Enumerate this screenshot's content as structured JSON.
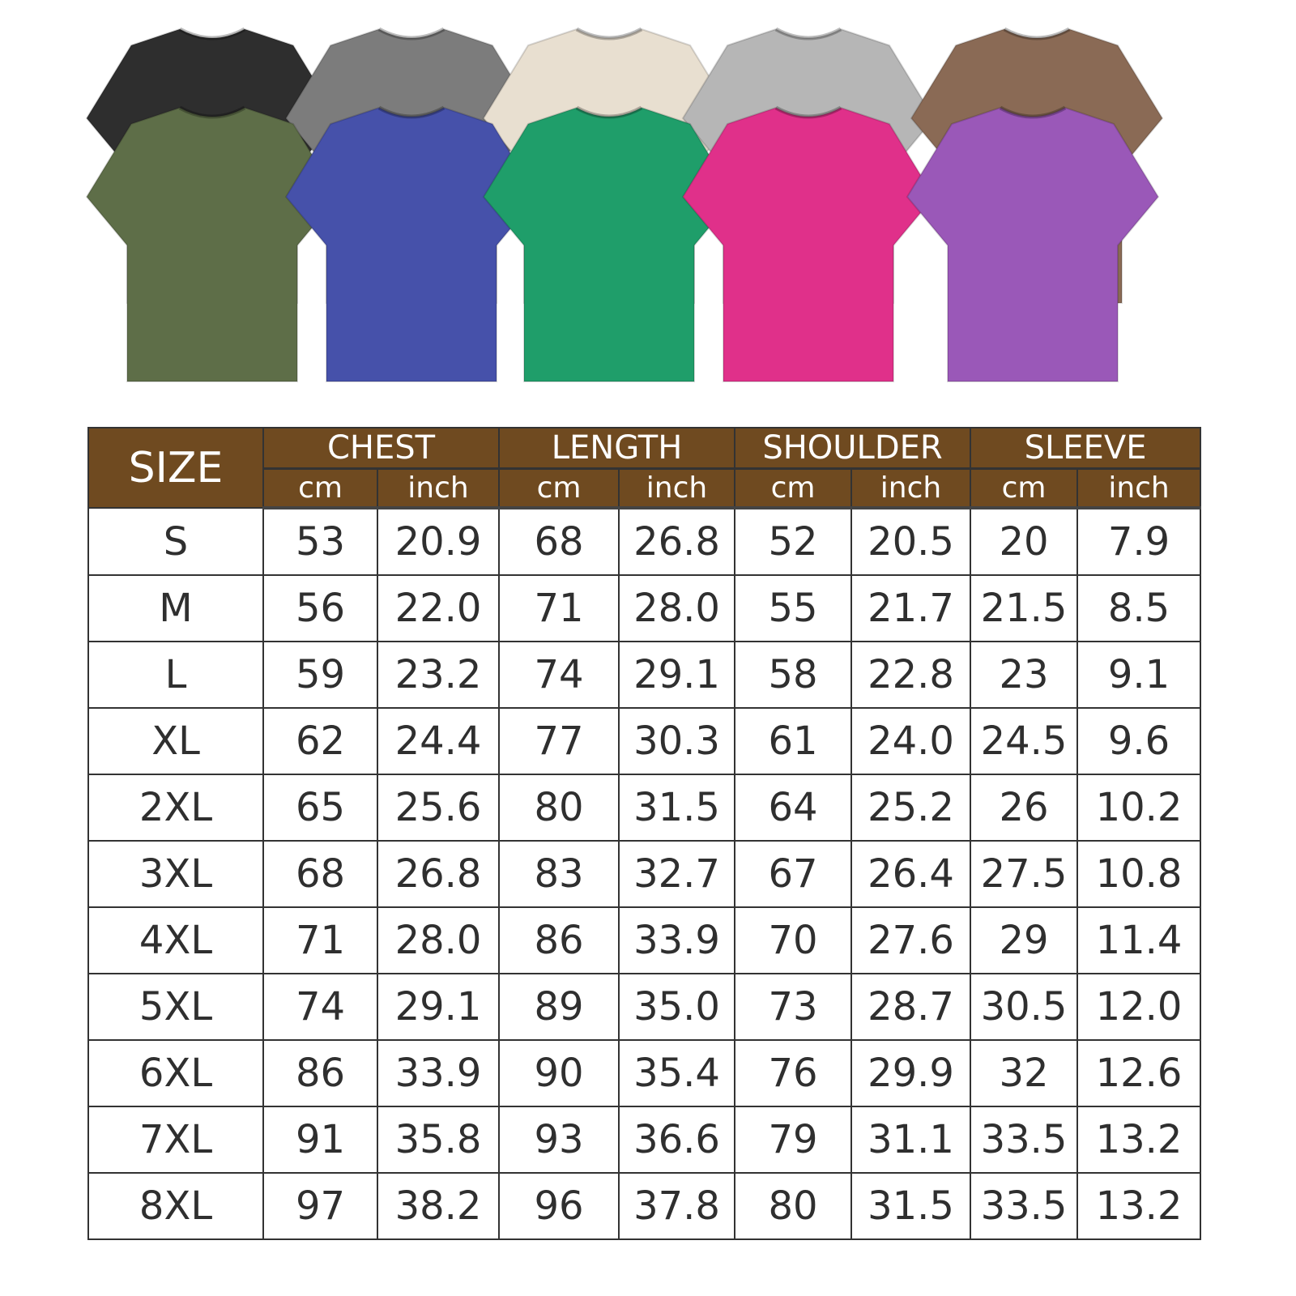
{
  "shirts": {
    "back_row": [
      {
        "color": "#2e2e2e"
      },
      {
        "color": "#7c7c7c"
      },
      {
        "color": "#e8dfd0"
      },
      {
        "color": "#b6b6b6"
      },
      {
        "color": "#8a6a55"
      }
    ],
    "front_row": [
      {
        "color": "#5e6e48"
      },
      {
        "color": "#4651aa"
      },
      {
        "color": "#1f9e6a"
      },
      {
        "color": "#e0308a"
      },
      {
        "color": "#9a58b8"
      }
    ]
  },
  "table": {
    "header_color": "#6f4a20",
    "size_label": "SIZE",
    "groups": [
      "CHEST",
      "LENGTH",
      "SHOULDER",
      "SLEEVE"
    ],
    "units": [
      "cm",
      "inch"
    ],
    "rows": [
      [
        "S",
        "53",
        "20.9",
        "68",
        "26.8",
        "52",
        "20.5",
        "20",
        "7.9"
      ],
      [
        "M",
        "56",
        "22.0",
        "71",
        "28.0",
        "55",
        "21.7",
        "21.5",
        "8.5"
      ],
      [
        "L",
        "59",
        "23.2",
        "74",
        "29.1",
        "58",
        "22.8",
        "23",
        "9.1"
      ],
      [
        "XL",
        "62",
        "24.4",
        "77",
        "30.3",
        "61",
        "24.0",
        "24.5",
        "9.6"
      ],
      [
        "2XL",
        "65",
        "25.6",
        "80",
        "31.5",
        "64",
        "25.2",
        "26",
        "10.2"
      ],
      [
        "3XL",
        "68",
        "26.8",
        "83",
        "32.7",
        "67",
        "26.4",
        "27.5",
        "10.8"
      ],
      [
        "4XL",
        "71",
        "28.0",
        "86",
        "33.9",
        "70",
        "27.6",
        "29",
        "11.4"
      ],
      [
        "5XL",
        "74",
        "29.1",
        "89",
        "35.0",
        "73",
        "28.7",
        "30.5",
        "12.0"
      ],
      [
        "6XL",
        "86",
        "33.9",
        "90",
        "35.4",
        "76",
        "29.9",
        "32",
        "12.6"
      ],
      [
        "7XL",
        "91",
        "35.8",
        "93",
        "36.6",
        "79",
        "31.1",
        "33.5",
        "13.2"
      ],
      [
        "8XL",
        "97",
        "38.2",
        "96",
        "37.8",
        "80",
        "31.5",
        "33.5",
        "13.2"
      ]
    ]
  }
}
